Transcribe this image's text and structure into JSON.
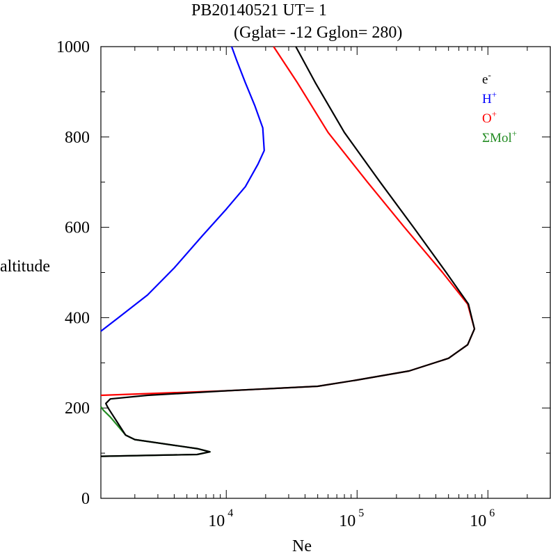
{
  "chart_data": {
    "type": "line",
    "title": "PB20140521   UT=  1",
    "subtitle": "(Gglat= -12   Gglon=  280)",
    "xlabel": "Ne",
    "ylabel": "altitude",
    "x_scale": "log",
    "xlim": [
      1100,
      3000000
    ],
    "ylim": [
      0,
      1000
    ],
    "y_ticks": [
      "0",
      "200",
      "400",
      "600",
      "800",
      "1000"
    ],
    "x_ticks": [
      {
        "value": 10000,
        "base": "10",
        "exp": "4"
      },
      {
        "value": 100000,
        "base": "10",
        "exp": "5"
      },
      {
        "value": 1000000,
        "base": "10",
        "exp": "6"
      }
    ],
    "legend_position": "top-right",
    "series": [
      {
        "name": "H",
        "sup": "+",
        "color": "#0000ff",
        "points": [
          [
            1100,
            370
          ],
          [
            1500,
            400
          ],
          [
            2500,
            450
          ],
          [
            4000,
            510
          ],
          [
            6500,
            580
          ],
          [
            10000,
            640
          ],
          [
            14000,
            690
          ],
          [
            17500,
            740
          ],
          [
            19500,
            770
          ],
          [
            19000,
            820
          ],
          [
            16500,
            870
          ],
          [
            14000,
            920
          ],
          [
            12000,
            970
          ],
          [
            11000,
            1000
          ]
        ]
      },
      {
        "name": "O",
        "sup": "+",
        "color": "#ff0000",
        "points": [
          [
            1100,
            228
          ],
          [
            10000,
            238
          ],
          [
            50000,
            248
          ],
          [
            100000,
            262
          ],
          [
            250000,
            282
          ],
          [
            500000,
            310
          ],
          [
            700000,
            340
          ],
          [
            790000,
            375
          ],
          [
            700000,
            430
          ],
          [
            450000,
            500
          ],
          [
            230000,
            600
          ],
          [
            120000,
            700
          ],
          [
            60000,
            810
          ],
          [
            35000,
            920
          ],
          [
            23000,
            1000
          ]
        ]
      },
      {
        "name": "ΣMol",
        "sup": "+",
        "color": "#228b22",
        "points": [
          [
            1100,
            93
          ],
          [
            6000,
            97
          ],
          [
            7500,
            103
          ],
          [
            6000,
            110
          ],
          [
            2000,
            130
          ],
          [
            1700,
            140
          ],
          [
            1300,
            180
          ],
          [
            1150,
            195
          ],
          [
            1100,
            203
          ]
        ]
      },
      {
        "name": "e",
        "sup": "-",
        "color": "#000000",
        "points": [
          [
            1100,
            93
          ],
          [
            6000,
            97
          ],
          [
            7500,
            103
          ],
          [
            6000,
            110
          ],
          [
            2000,
            130
          ],
          [
            1700,
            140
          ],
          [
            1250,
            200
          ],
          [
            1200,
            210
          ],
          [
            1300,
            220
          ],
          [
            2500,
            228
          ],
          [
            10000,
            238
          ],
          [
            50000,
            248
          ],
          [
            100000,
            262
          ],
          [
            250000,
            282
          ],
          [
            500000,
            310
          ],
          [
            700000,
            340
          ],
          [
            790000,
            375
          ],
          [
            710000,
            430
          ],
          [
            480000,
            500
          ],
          [
            270000,
            600
          ],
          [
            150000,
            700
          ],
          [
            80000,
            810
          ],
          [
            48000,
            920
          ],
          [
            34000,
            1000
          ]
        ]
      }
    ]
  }
}
